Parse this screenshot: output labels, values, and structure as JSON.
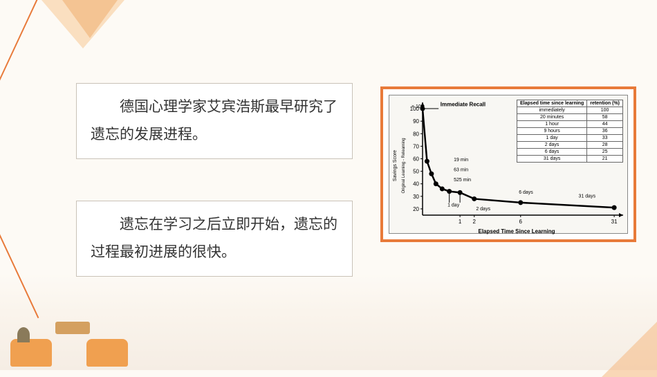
{
  "text1": "　　德国心理学家艾宾浩斯最早研究了遗忘的发展进程。",
  "text2": "　　遗忘在学习之后立即开始，遗忘的过程最初进展的很快。",
  "chart": {
    "ylabel_left": "Savings Score",
    "ylabel_right": "Original Learning - Relearning",
    "ylabel_mult": "× 100",
    "xlabel": "Elapsed Time Since Learning",
    "annot_immediate": "Immediate Recall",
    "annot_19": "19 min",
    "annot_63": "63 min",
    "annot_525": "525 min",
    "annot_1d": "1 day",
    "annot_2d": "2 days",
    "annot_6d": "6 days",
    "annot_31d": "31 days",
    "yticks": [
      20,
      30,
      40,
      50,
      60,
      70,
      80,
      90,
      100
    ],
    "xticks": [
      1,
      2,
      6,
      31
    ],
    "curve_points": [
      [
        0,
        100
      ],
      [
        5,
        58
      ],
      [
        10,
        48
      ],
      [
        15,
        40
      ],
      [
        22,
        36
      ],
      [
        30,
        34
      ],
      [
        42,
        33
      ],
      [
        58,
        28
      ],
      [
        110,
        25
      ],
      [
        215,
        21
      ]
    ],
    "line_color": "#000000",
    "line_width": 2.5,
    "marker_size": 3.5
  },
  "table": {
    "h1": "Elapsed time since learning",
    "h2": "retention (%)",
    "rows": [
      [
        "immediately",
        "100"
      ],
      [
        "20 minutes",
        "58"
      ],
      [
        "1 hour",
        "44"
      ],
      [
        "9 hours",
        "36"
      ],
      [
        "1 day",
        "33"
      ],
      [
        "2 days",
        "28"
      ],
      [
        "6 days",
        "25"
      ],
      [
        "31 days",
        "21"
      ]
    ]
  },
  "colors": {
    "accent": "#e87a3a",
    "box_border": "#c9c2b8",
    "bg": "#fdfaf5"
  }
}
